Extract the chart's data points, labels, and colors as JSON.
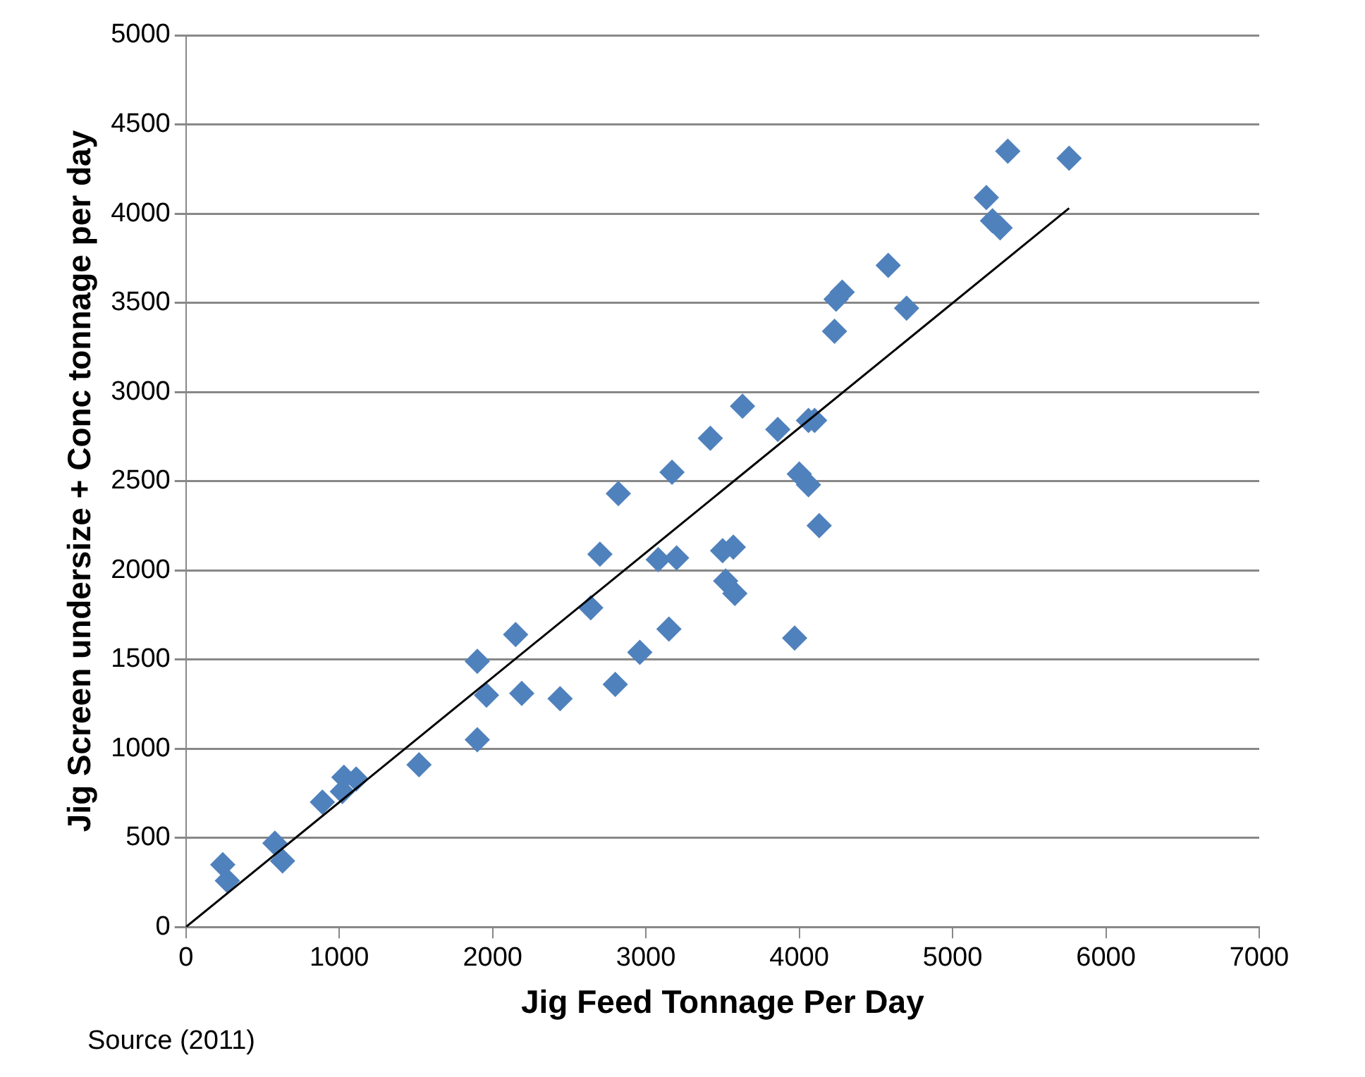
{
  "chart_data": {
    "type": "scatter",
    "xlabel": "Jig Feed Tonnage Per Day",
    "ylabel": "Jig Screen undersize + Conc tonnage per day",
    "xlim": [
      0,
      7000
    ],
    "xticks": [
      0,
      1000,
      2000,
      3000,
      4000,
      5000,
      6000,
      7000
    ],
    "ylim": [
      0,
      5000
    ],
    "yticks": [
      0,
      500,
      1000,
      1500,
      2000,
      2500,
      3000,
      3500,
      4000,
      4500,
      5000
    ],
    "grid": "y",
    "legend": false,
    "marker": "diamond",
    "annotations": [
      "Source (2011)"
    ],
    "series": [
      {
        "color": "#4f81bd",
        "x": [
          240,
          270,
          580,
          630,
          890,
          1020,
          1030,
          1110,
          1520,
          1900,
          1960,
          1900,
          2150,
          2190,
          2440,
          2640,
          2800,
          2960,
          3150,
          2700,
          2820,
          3080,
          3200,
          3170,
          3420,
          3630,
          3500,
          3570,
          3520,
          3580,
          3970,
          3860,
          4060,
          4100,
          4000,
          4060,
          4130,
          4230,
          4240,
          4280,
          4580,
          4700,
          5220,
          5260,
          5310,
          5360,
          5760
        ],
        "values": [
          350,
          260,
          470,
          370,
          700,
          760,
          840,
          830,
          910,
          1490,
          1300,
          1050,
          1640,
          1310,
          1280,
          1790,
          1360,
          1540,
          1670,
          2090,
          2430,
          2060,
          2070,
          2550,
          2740,
          2920,
          2110,
          2130,
          1940,
          1870,
          1620,
          2790,
          2840,
          2840,
          2540,
          2480,
          2250,
          3340,
          3520,
          3560,
          3710,
          3470,
          4090,
          3960,
          3920,
          4350,
          4310
        ]
      },
      {
        "type": "line",
        "color": "#000000",
        "marker": "none",
        "x": [
          0,
          5760
        ],
        "values": [
          0,
          4030
        ]
      }
    ]
  }
}
